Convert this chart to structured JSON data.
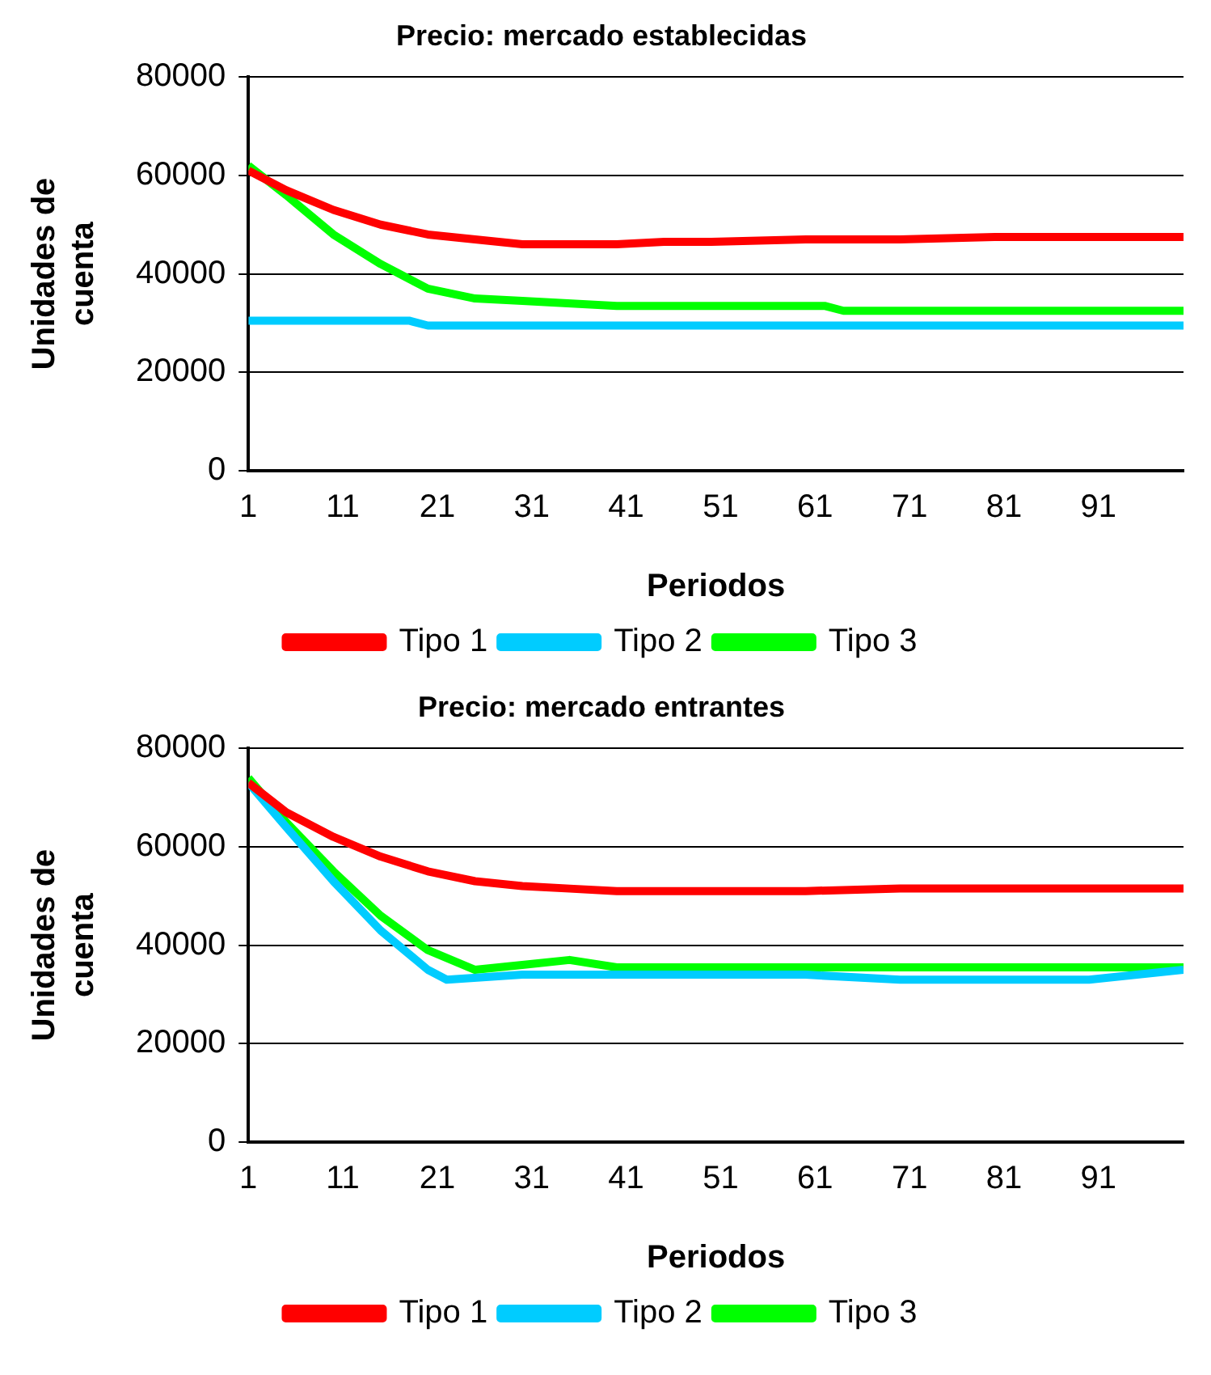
{
  "chart_data": [
    {
      "type": "line",
      "title": "Precio: mercado establecidas",
      "xlabel": "Periodos",
      "ylabel": "Unidades de cuenta",
      "xlim": [
        1,
        100
      ],
      "xticks": [
        1,
        11,
        21,
        31,
        41,
        51,
        61,
        71,
        81,
        91
      ],
      "ylim": [
        0,
        80000
      ],
      "yticks": [
        0,
        20000,
        40000,
        60000,
        80000
      ],
      "grid": "y",
      "legend": "bottom",
      "marker": "none",
      "line_style": "solid",
      "series": [
        {
          "name": "Tipo 1",
          "color": "#ff0000",
          "x": [
            1,
            5,
            10,
            15,
            20,
            25,
            30,
            40,
            45,
            50,
            60,
            70,
            80,
            90,
            100
          ],
          "values": [
            61000,
            57000,
            53000,
            50000,
            48000,
            47000,
            46000,
            46000,
            46500,
            46500,
            47000,
            47000,
            47500,
            47500,
            47500
          ]
        },
        {
          "name": "Tipo 2",
          "color": "#00ccff",
          "x": [
            1,
            18,
            20,
            100
          ],
          "values": [
            30500,
            30500,
            29500,
            29500
          ]
        },
        {
          "name": "Tipo 3",
          "color": "#00ff00",
          "x": [
            1,
            5,
            10,
            15,
            20,
            25,
            30,
            40,
            62,
            64,
            100
          ],
          "values": [
            62000,
            56000,
            48000,
            42000,
            37000,
            35000,
            34500,
            33500,
            33500,
            32500,
            32500
          ]
        }
      ]
    },
    {
      "type": "line",
      "title": "Precio: mercado entrantes",
      "xlabel": "Periodos",
      "ylabel": "Unidades de cuenta",
      "xlim": [
        1,
        100
      ],
      "xticks": [
        1,
        11,
        21,
        31,
        41,
        51,
        61,
        71,
        81,
        91
      ],
      "ylim": [
        0,
        80000
      ],
      "yticks": [
        0,
        20000,
        40000,
        60000,
        80000
      ],
      "grid": "y",
      "legend": "bottom",
      "marker": "none",
      "line_style": "solid",
      "series": [
        {
          "name": "Tipo 1",
          "color": "#ff0000",
          "x": [
            1,
            5,
            10,
            15,
            20,
            25,
            30,
            35,
            40,
            60,
            70,
            100
          ],
          "values": [
            73000,
            67000,
            62000,
            58000,
            55000,
            53000,
            52000,
            51500,
            51000,
            51000,
            51500,
            51500
          ]
        },
        {
          "name": "Tipo 2",
          "color": "#00ccff",
          "x": [
            1,
            5,
            10,
            15,
            20,
            22,
            30,
            40,
            60,
            70,
            90,
            100
          ],
          "values": [
            73000,
            64000,
            53000,
            43000,
            35000,
            33000,
            34000,
            34000,
            34000,
            33000,
            33000,
            35000
          ]
        },
        {
          "name": "Tipo 3",
          "color": "#00ff00",
          "x": [
            1,
            5,
            10,
            15,
            20,
            25,
            30,
            35,
            40,
            100
          ],
          "values": [
            74000,
            65000,
            55000,
            46000,
            39000,
            35000,
            36000,
            37000,
            35500,
            35500
          ]
        }
      ]
    }
  ]
}
